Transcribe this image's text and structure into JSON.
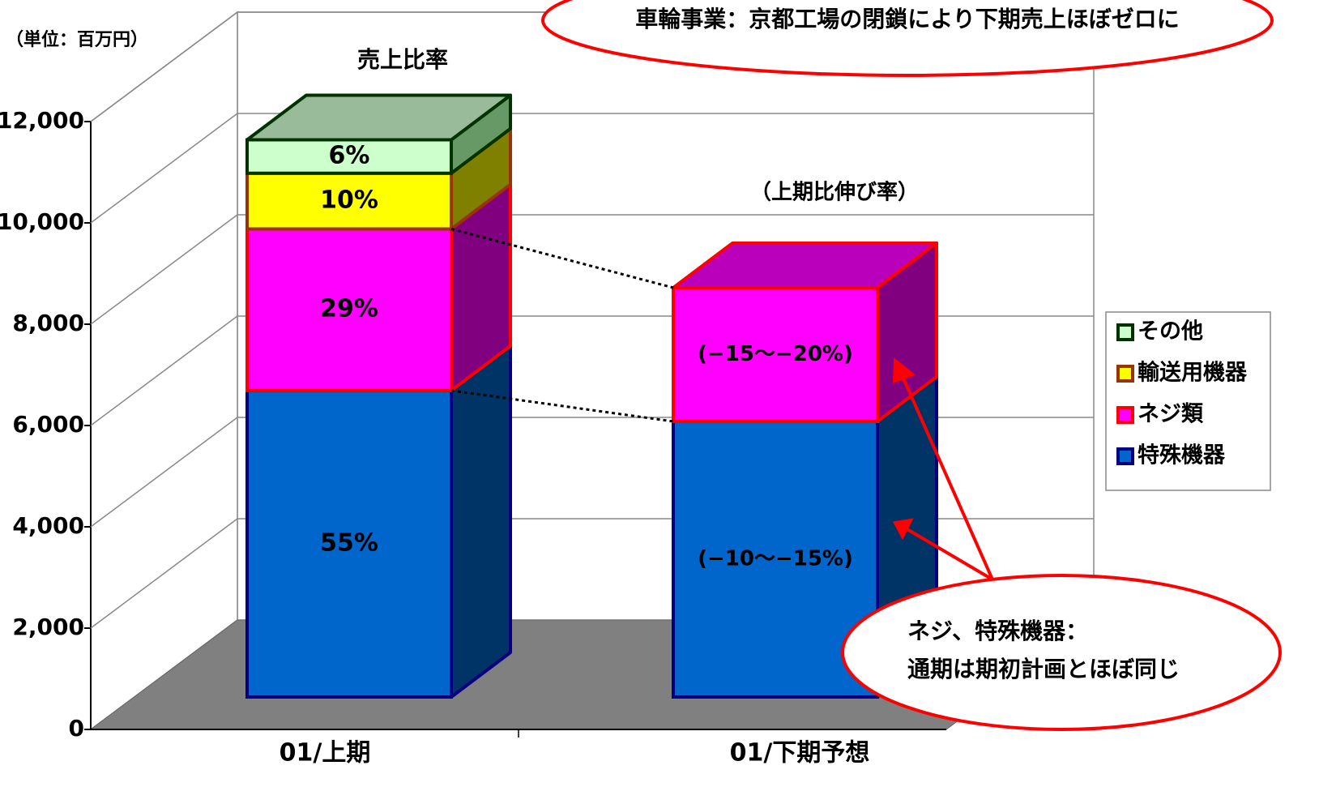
{
  "chart_data": {
    "type": "bar3d_stacked",
    "title": "売上比率",
    "unit_label": "（単位：百万円）",
    "growth_title": "（上期比伸び率）",
    "categories": [
      "01/上期",
      "01/下期予想"
    ],
    "series": [
      {
        "name": "特殊機器",
        "color": "#0066cc",
        "side_color": "#003366",
        "top_color": "#0055aa",
        "edge_color": "#000080",
        "values": [
          6050,
          5440
        ]
      },
      {
        "name": "ネジ類",
        "color": "#ff00ff",
        "side_color": "#800080",
        "top_color": "#bb00bb",
        "edge_color": "#ff0000",
        "values": [
          3190,
          2640
        ]
      },
      {
        "name": "輸送用機器",
        "color": "#ffff00",
        "side_color": "#808000",
        "top_color": "#cccc00",
        "edge_color": "#993300",
        "values": [
          1100,
          0
        ]
      },
      {
        "name": "その他",
        "color": "#ccffcc",
        "side_color": "#669966",
        "top_color": "#99bb99",
        "edge_color": "#003300",
        "values": [
          660,
          0
        ]
      }
    ],
    "share_labels": [
      "55%",
      "29%",
      "10%",
      "6%"
    ],
    "growth_labels": [
      "(−10〜−15%)",
      "(−15〜−20%)"
    ],
    "ylim": [
      0,
      12000
    ],
    "yticks": [
      0,
      {
        "value": 2000,
        "label": "2,000"
      },
      {
        "value": 4000,
        "label": "4,000"
      },
      {
        "value": 6000,
        "label": "6,000"
      },
      {
        "value": 8000,
        "label": "8,000"
      },
      {
        "value": 10000,
        "label": "10,000"
      },
      {
        "value": 12000,
        "label": "12,000"
      }
    ],
    "grid": true,
    "legend": "right",
    "callouts": [
      "車輪事業：京都工場の閉鎖により下期売上ほぼゼロに",
      "ネジ、特殊機器：",
      "通期は期初計画とほぼ同じ"
    ]
  }
}
